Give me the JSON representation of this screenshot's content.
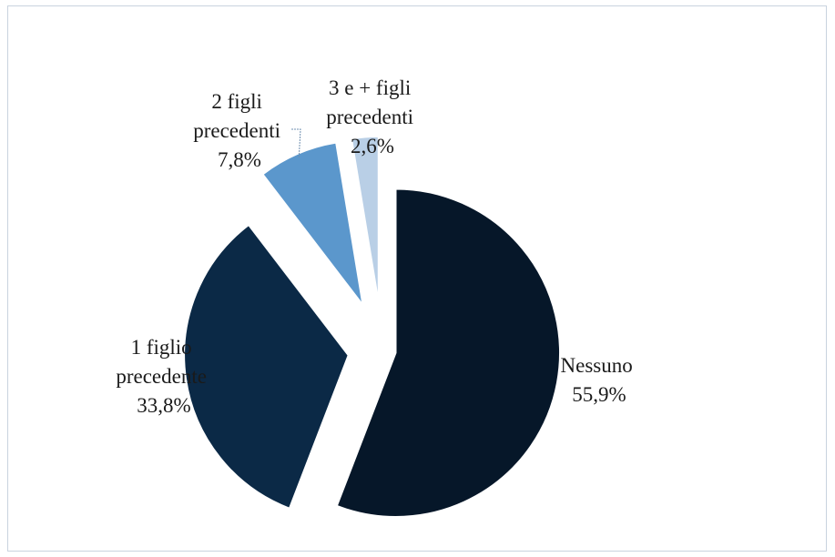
{
  "chart_data": {
    "type": "pie",
    "title": "",
    "exploded": true,
    "slices": [
      {
        "name": "Nessuno",
        "label_lines": [
          "Nessuno",
          "55,9%"
        ],
        "value": 55.9,
        "color": "#061729"
      },
      {
        "name": "1 figlio precedente",
        "label_lines": [
          "1 figlio",
          "precedente",
          "33,8%"
        ],
        "value": 33.8,
        "color": "#0b2946"
      },
      {
        "name": "2 figli precedenti",
        "label_lines": [
          "2 figli",
          "precedenti",
          "7,8%"
        ],
        "value": 7.8,
        "color": "#5b97cc"
      },
      {
        "name": "3 e + figli precedenti",
        "label_lines": [
          "3 e + figli",
          "precedenti",
          "2,6%"
        ],
        "value": 2.6,
        "color": "#b9cfe6"
      }
    ]
  }
}
